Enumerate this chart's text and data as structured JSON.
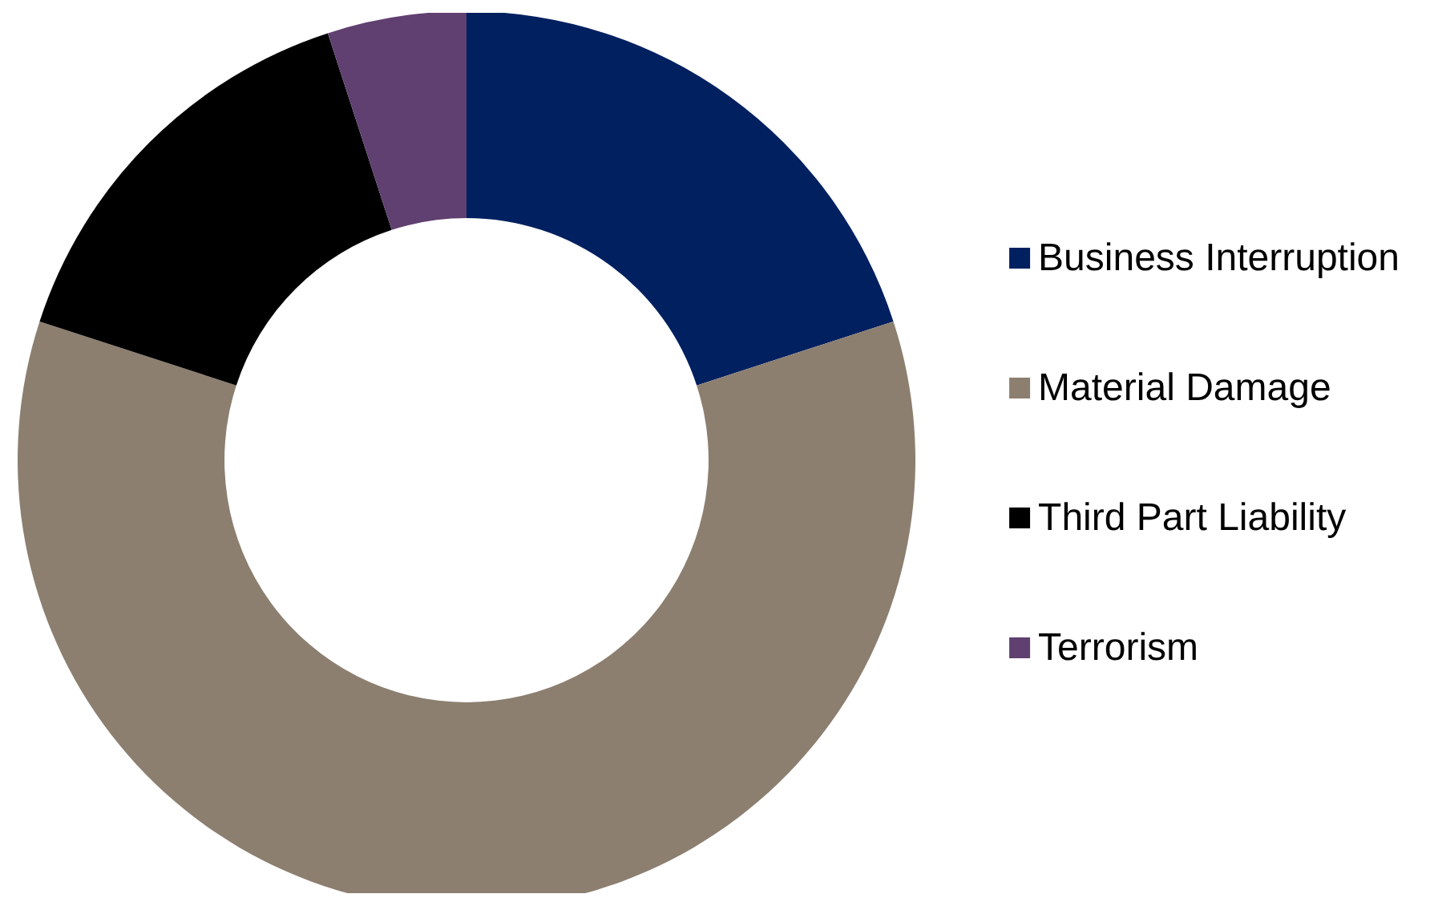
{
  "chart_data": {
    "type": "donut",
    "categories": [
      "Business Interruption",
      "Material Damage",
      "Third Part Liability",
      "Terrorism"
    ],
    "values": [
      20,
      60,
      15,
      5
    ],
    "colors": [
      "#002060",
      "#8c7f70",
      "#000000",
      "#604070"
    ],
    "legend": "right"
  }
}
